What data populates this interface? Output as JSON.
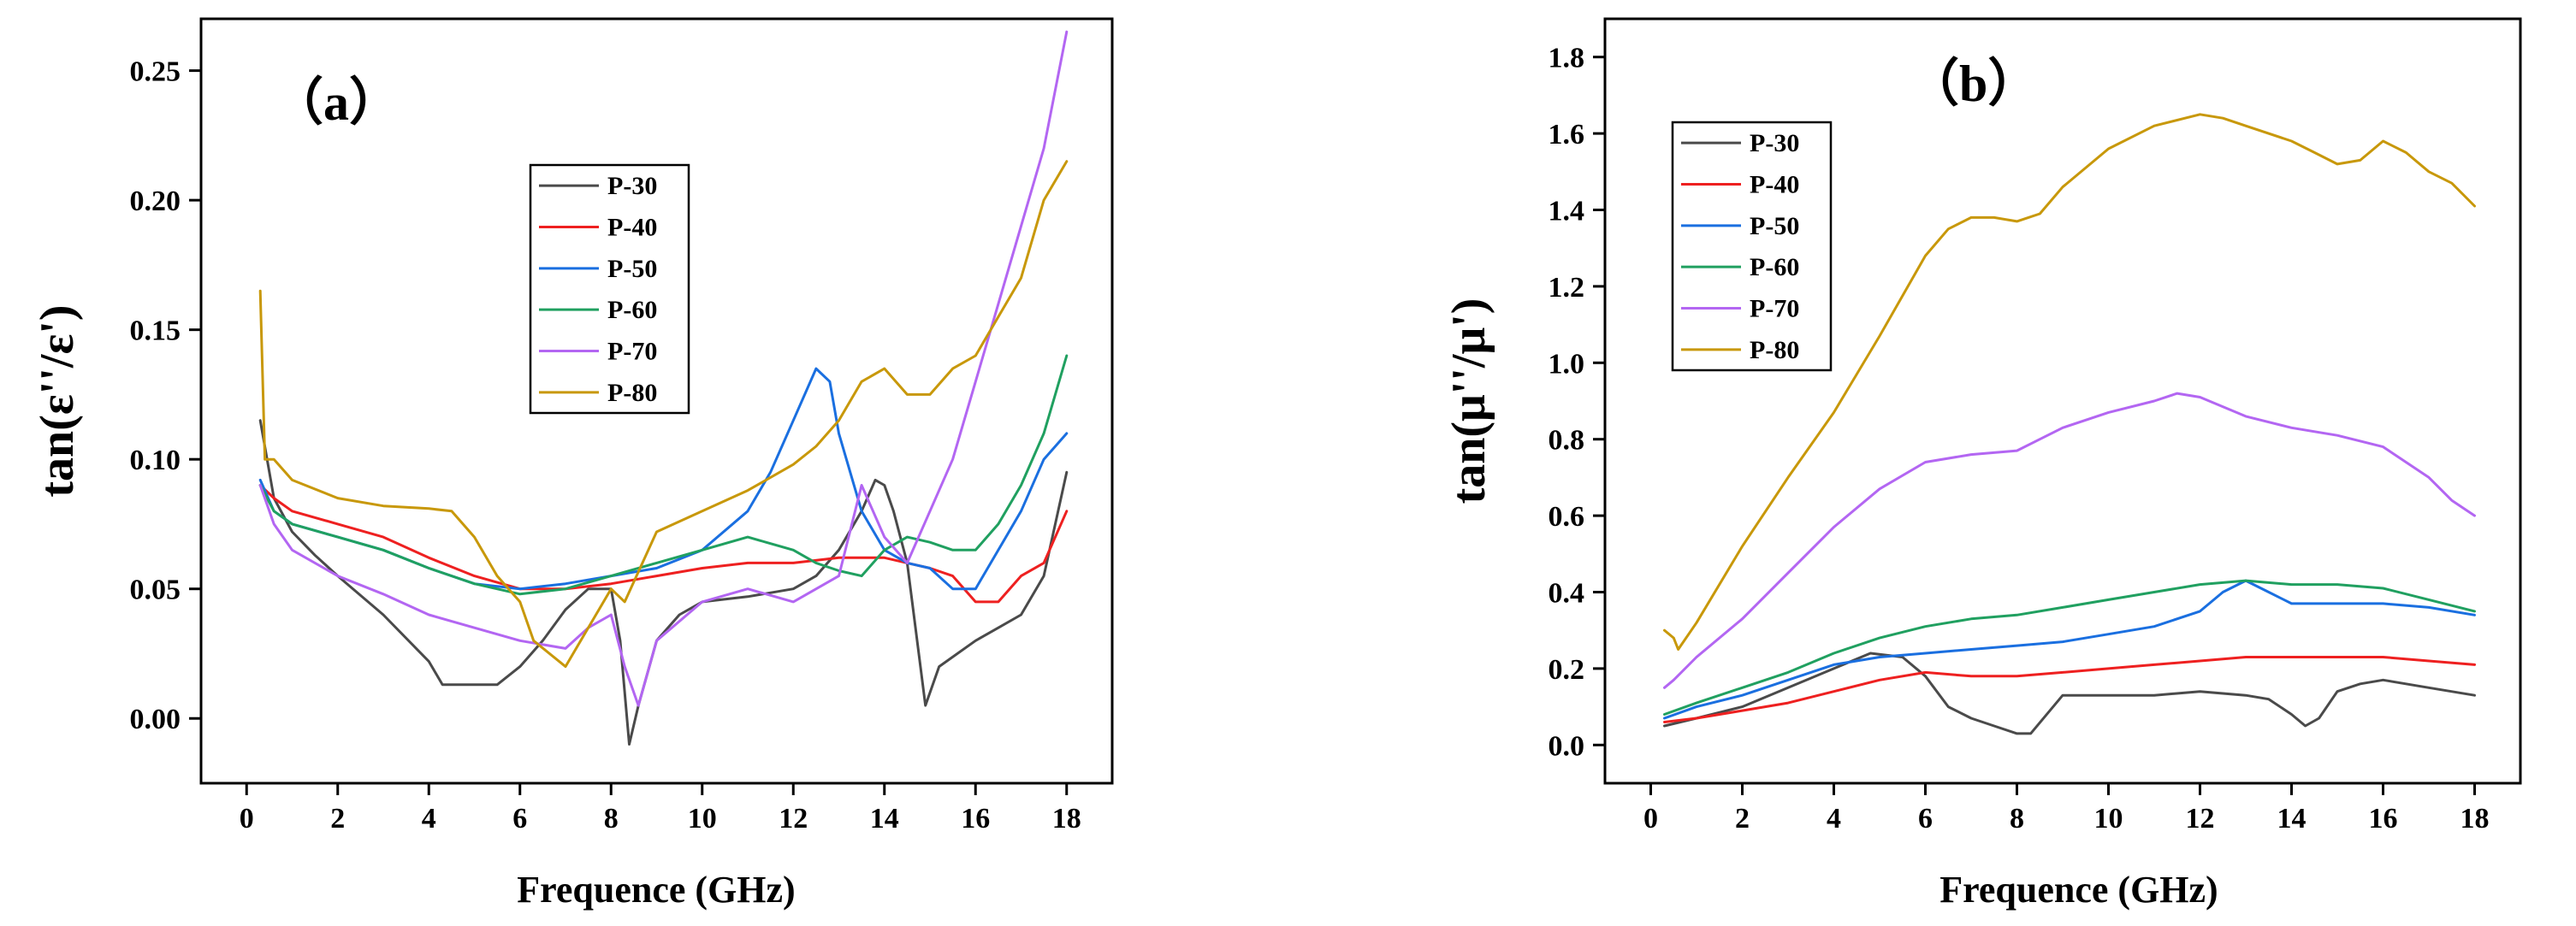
{
  "colors": {
    "P-30": "#4a4a4a",
    "P-40": "#ee2020",
    "P-50": "#1a6fe0",
    "P-60": "#20a060",
    "P-70": "#b366f2",
    "P-80": "#c8980a"
  },
  "chart_data": [
    {
      "type": "line",
      "panel_label": "（a）",
      "xlabel": "Frequence (GHz)",
      "ylabel": "tan(ε''/ε')",
      "xlim": [
        -1,
        19
      ],
      "ylim": [
        -0.025,
        0.27
      ],
      "x_ticks": [
        0,
        2,
        4,
        6,
        8,
        10,
        12,
        14,
        16,
        18
      ],
      "y_ticks": [
        0.0,
        0.05,
        0.1,
        0.15,
        0.2,
        0.25
      ],
      "y_tick_labels": [
        "0.00",
        "0.05",
        "0.10",
        "0.15",
        "0.20",
        "0.25"
      ],
      "legend_position": "upper-center",
      "series": [
        {
          "name": "P-30",
          "x": [
            0.3,
            0.6,
            1,
            1.5,
            2,
            3,
            4,
            4.3,
            5,
            5.5,
            6,
            6.5,
            7,
            7.5,
            8,
            8.2,
            8.4,
            8.6,
            9,
            9.5,
            10,
            11,
            12,
            12.5,
            13,
            13.5,
            13.8,
            14,
            14.2,
            14.5,
            14.9,
            15.2,
            16,
            16.5,
            17,
            17.5,
            18
          ],
          "y": [
            0.115,
            0.085,
            0.072,
            0.063,
            0.055,
            0.04,
            0.022,
            0.013,
            0.013,
            0.013,
            0.02,
            0.03,
            0.042,
            0.05,
            0.05,
            0.03,
            -0.01,
            0.005,
            0.03,
            0.04,
            0.045,
            0.047,
            0.05,
            0.055,
            0.065,
            0.08,
            0.092,
            0.09,
            0.08,
            0.06,
            0.005,
            0.02,
            0.03,
            0.035,
            0.04,
            0.055,
            0.095
          ]
        },
        {
          "name": "P-40",
          "x": [
            0.3,
            0.6,
            1,
            2,
            3,
            4,
            5,
            6,
            7,
            8,
            9,
            10,
            11,
            12,
            13,
            14,
            14.5,
            15,
            15.5,
            16,
            16.5,
            17,
            17.5,
            18
          ],
          "y": [
            0.09,
            0.085,
            0.08,
            0.075,
            0.07,
            0.062,
            0.055,
            0.05,
            0.05,
            0.052,
            0.055,
            0.058,
            0.06,
            0.06,
            0.062,
            0.062,
            0.06,
            0.058,
            0.055,
            0.045,
            0.045,
            0.055,
            0.06,
            0.08
          ]
        },
        {
          "name": "P-50",
          "x": [
            0.3,
            0.6,
            1,
            2,
            3,
            4,
            5,
            6,
            7,
            8,
            9,
            10,
            11,
            11.5,
            12,
            12.5,
            12.8,
            13,
            13.5,
            14,
            14.5,
            15,
            15.5,
            16,
            16.5,
            17,
            17.5,
            18
          ],
          "y": [
            0.092,
            0.08,
            0.075,
            0.07,
            0.065,
            0.058,
            0.052,
            0.05,
            0.052,
            0.055,
            0.058,
            0.065,
            0.08,
            0.095,
            0.115,
            0.135,
            0.13,
            0.11,
            0.08,
            0.065,
            0.06,
            0.058,
            0.05,
            0.05,
            0.065,
            0.08,
            0.1,
            0.11
          ]
        },
        {
          "name": "P-60",
          "x": [
            0.3,
            0.6,
            1,
            2,
            3,
            4,
            5,
            6,
            7,
            8,
            9,
            10,
            11,
            12,
            12.5,
            13,
            13.5,
            14,
            14.5,
            15,
            15.5,
            16,
            16.5,
            17,
            17.5,
            18
          ],
          "y": [
            0.09,
            0.08,
            0.075,
            0.07,
            0.065,
            0.058,
            0.052,
            0.048,
            0.05,
            0.055,
            0.06,
            0.065,
            0.07,
            0.065,
            0.06,
            0.057,
            0.055,
            0.065,
            0.07,
            0.068,
            0.065,
            0.065,
            0.075,
            0.09,
            0.11,
            0.14
          ]
        },
        {
          "name": "P-70",
          "x": [
            0.3,
            0.6,
            1,
            2,
            3,
            4,
            5,
            6,
            7,
            7.5,
            8,
            8.3,
            8.6,
            9,
            10,
            11,
            12,
            13,
            13.5,
            14,
            14.5,
            15,
            15.5,
            16,
            16.5,
            17,
            17.5,
            18
          ],
          "y": [
            0.09,
            0.075,
            0.065,
            0.055,
            0.048,
            0.04,
            0.035,
            0.03,
            0.027,
            0.035,
            0.04,
            0.02,
            0.005,
            0.03,
            0.045,
            0.05,
            0.045,
            0.055,
            0.09,
            0.07,
            0.06,
            0.08,
            0.1,
            0.13,
            0.16,
            0.19,
            0.22,
            0.265
          ]
        },
        {
          "name": "P-80",
          "x": [
            0.3,
            0.4,
            0.6,
            1,
            2,
            3,
            4,
            4.5,
            5,
            5.5,
            6,
            6.3,
            7,
            7.5,
            8,
            8.3,
            9,
            10,
            11,
            12,
            12.5,
            13,
            13.5,
            14,
            14.5,
            15,
            15.5,
            16,
            16.5,
            17,
            17.5,
            18
          ],
          "y": [
            0.165,
            0.1,
            0.1,
            0.092,
            0.085,
            0.082,
            0.081,
            0.08,
            0.07,
            0.055,
            0.045,
            0.03,
            0.02,
            0.035,
            0.05,
            0.045,
            0.072,
            0.08,
            0.088,
            0.098,
            0.105,
            0.115,
            0.13,
            0.135,
            0.125,
            0.125,
            0.135,
            0.14,
            0.155,
            0.17,
            0.2,
            0.215
          ]
        }
      ]
    },
    {
      "type": "line",
      "panel_label": "（b）",
      "xlabel": "Frequence (GHz)",
      "ylabel": "tan(μ''/μ')",
      "xlim": [
        -1,
        19
      ],
      "ylim": [
        -0.1,
        1.9
      ],
      "x_ticks": [
        0,
        2,
        4,
        6,
        8,
        10,
        12,
        14,
        16,
        18
      ],
      "y_ticks": [
        0.0,
        0.2,
        0.4,
        0.6,
        0.8,
        1.0,
        1.2,
        1.4,
        1.6,
        1.8
      ],
      "y_tick_labels": [
        "0.0",
        "0.2",
        "0.4",
        "0.6",
        "0.8",
        "1.0",
        "1.2",
        "1.4",
        "1.6",
        "1.8"
      ],
      "legend_position": "upper-left",
      "series": [
        {
          "name": "P-30",
          "x": [
            0.3,
            1,
            2,
            3,
            4,
            4.8,
            5.5,
            6,
            6.5,
            7,
            7.5,
            8,
            8.3,
            9,
            10,
            11,
            12,
            13,
            13.5,
            14,
            14.3,
            14.6,
            15,
            15.5,
            16,
            17,
            18
          ],
          "y": [
            0.05,
            0.07,
            0.1,
            0.15,
            0.2,
            0.24,
            0.23,
            0.18,
            0.1,
            0.07,
            0.05,
            0.03,
            0.03,
            0.13,
            0.13,
            0.13,
            0.14,
            0.13,
            0.12,
            0.08,
            0.05,
            0.07,
            0.14,
            0.16,
            0.17,
            0.15,
            0.13
          ]
        },
        {
          "name": "P-40",
          "x": [
            0.3,
            1,
            2,
            3,
            4,
            5,
            6,
            7,
            8,
            9,
            10,
            11,
            12,
            13,
            14,
            15,
            16,
            17,
            18
          ],
          "y": [
            0.06,
            0.07,
            0.09,
            0.11,
            0.14,
            0.17,
            0.19,
            0.18,
            0.18,
            0.19,
            0.2,
            0.21,
            0.22,
            0.23,
            0.23,
            0.23,
            0.23,
            0.22,
            0.21
          ]
        },
        {
          "name": "P-50",
          "x": [
            0.3,
            1,
            2,
            3,
            4,
            5,
            6,
            7,
            8,
            9,
            10,
            11,
            12,
            12.5,
            13,
            13.5,
            14,
            15,
            16,
            17,
            18
          ],
          "y": [
            0.07,
            0.1,
            0.13,
            0.17,
            0.21,
            0.23,
            0.24,
            0.25,
            0.26,
            0.27,
            0.29,
            0.31,
            0.35,
            0.4,
            0.43,
            0.4,
            0.37,
            0.37,
            0.37,
            0.36,
            0.34
          ]
        },
        {
          "name": "P-60",
          "x": [
            0.3,
            1,
            2,
            3,
            4,
            5,
            6,
            7,
            8,
            9,
            10,
            11,
            12,
            13,
            14,
            15,
            16,
            17,
            18
          ],
          "y": [
            0.08,
            0.11,
            0.15,
            0.19,
            0.24,
            0.28,
            0.31,
            0.33,
            0.34,
            0.36,
            0.38,
            0.4,
            0.42,
            0.43,
            0.42,
            0.42,
            0.41,
            0.38,
            0.35
          ]
        },
        {
          "name": "P-70",
          "x": [
            0.3,
            0.5,
            1,
            2,
            3,
            4,
            5,
            6,
            7,
            8,
            8.5,
            9,
            10,
            11,
            11.5,
            12,
            13,
            14,
            15,
            16,
            17,
            17.5,
            18
          ],
          "y": [
            0.15,
            0.17,
            0.23,
            0.33,
            0.45,
            0.57,
            0.67,
            0.74,
            0.76,
            0.77,
            0.8,
            0.83,
            0.87,
            0.9,
            0.92,
            0.91,
            0.86,
            0.83,
            0.81,
            0.78,
            0.7,
            0.64,
            0.6
          ]
        },
        {
          "name": "P-80",
          "x": [
            0.3,
            0.5,
            0.6,
            1,
            2,
            3,
            4,
            5,
            6,
            6.5,
            7,
            7.5,
            8,
            8.5,
            9,
            10,
            11,
            12,
            12.5,
            13,
            14,
            14.5,
            15,
            15.5,
            16,
            16.5,
            17,
            17.5,
            18
          ],
          "y": [
            0.3,
            0.28,
            0.25,
            0.32,
            0.52,
            0.7,
            0.87,
            1.07,
            1.28,
            1.35,
            1.38,
            1.38,
            1.37,
            1.39,
            1.46,
            1.56,
            1.62,
            1.65,
            1.64,
            1.62,
            1.58,
            1.55,
            1.52,
            1.53,
            1.58,
            1.55,
            1.5,
            1.47,
            1.41
          ]
        }
      ]
    }
  ]
}
